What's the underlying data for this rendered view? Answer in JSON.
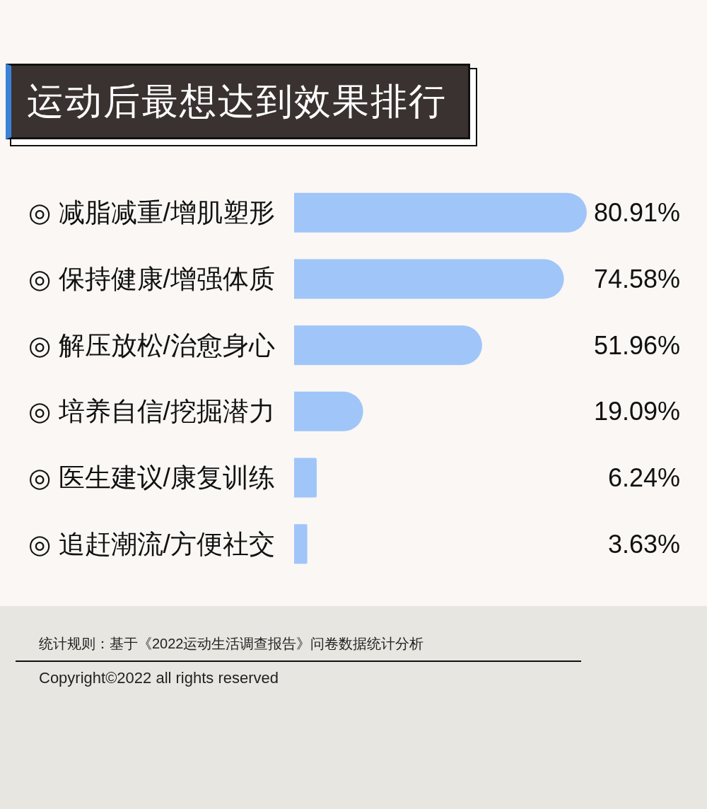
{
  "chart_data": {
    "type": "bar",
    "orientation": "horizontal",
    "title": "运动后最想达到效果排行",
    "categories": [
      "◎ 减脂减重/增肌塑形",
      "◎ 保持健康/增强体质",
      "◎ 解压放松/治愈身心",
      "◎ 培养自信/挖掘潜力",
      "◎ 医生建议/康复训练",
      "◎ 追赶潮流/方便社交"
    ],
    "values": [
      80.91,
      74.58,
      51.96,
      19.09,
      6.24,
      3.63
    ],
    "value_labels": [
      "80.91%",
      "74.58%",
      "51.96%",
      "19.09%",
      "6.24%",
      "3.63%"
    ],
    "color": "#a0c5f8",
    "tick_labels": "y",
    "annotations": [
      "统计规则：基于《2022运动生活调查报告》问卷数据统计分析",
      "Copyright©2022 all rights reserved"
    ]
  }
}
